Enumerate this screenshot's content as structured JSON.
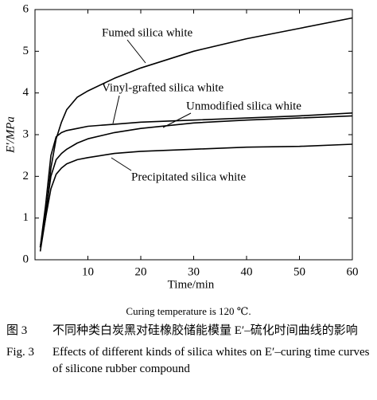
{
  "chart_data": {
    "type": "line",
    "x_label": "Time/min",
    "y_label": "E′/MPa",
    "x": [
      1,
      2,
      3,
      4,
      5,
      6,
      8,
      10,
      15,
      20,
      30,
      40,
      50,
      60
    ],
    "series": [
      {
        "name": "Fumed silica white",
        "color": "#000000",
        "values": [
          0.2,
          1.0,
          2.2,
          2.9,
          3.3,
          3.6,
          3.9,
          4.05,
          4.35,
          4.6,
          5.0,
          5.3,
          5.55,
          5.8
        ]
      },
      {
        "name": "Vinyl-grafted silica white",
        "color": "#000000",
        "values": [
          0.3,
          1.3,
          2.5,
          2.95,
          3.05,
          3.1,
          3.15,
          3.2,
          3.25,
          3.3,
          3.35,
          3.4,
          3.45,
          3.52
        ]
      },
      {
        "name": "Unmodified silica white",
        "color": "#000000",
        "values": [
          0.3,
          1.1,
          2.0,
          2.4,
          2.55,
          2.65,
          2.8,
          2.9,
          3.05,
          3.15,
          3.28,
          3.35,
          3.4,
          3.45
        ]
      },
      {
        "name": "Precipitated silica white",
        "color": "#000000",
        "values": [
          0.3,
          1.0,
          1.7,
          2.05,
          2.2,
          2.3,
          2.4,
          2.45,
          2.55,
          2.6,
          2.65,
          2.7,
          2.72,
          2.77
        ]
      }
    ],
    "xlim": [
      0,
      60
    ],
    "ylim": [
      0,
      6
    ],
    "xticks": [
      10,
      20,
      30,
      40,
      50,
      60
    ],
    "yticks": [
      0,
      1,
      2,
      3,
      4,
      5,
      6
    ],
    "note": "Curing temperature is 120 ℃."
  },
  "caption": {
    "cn_label": "图 3",
    "cn_text": "不同种类白炭黑对硅橡胶储能模量 E′–硫化时间曲线的影响",
    "en_label": "Fig. 3",
    "en_text": "Effects of different kinds of silica whites on E′–curing time curves of silicone rubber compound"
  }
}
